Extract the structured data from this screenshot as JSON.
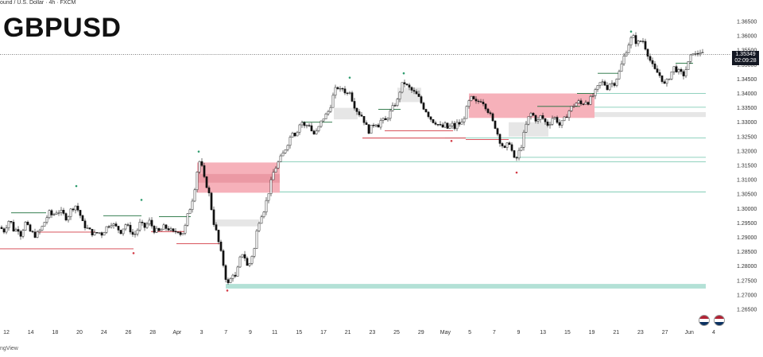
{
  "header": {
    "instrument": "ound / U.S. Dollar · 4h · FXCM"
  },
  "title": "GBPUSD",
  "watermark": "ngView",
  "current_price": {
    "price": "1.35349",
    "countdown": "02:09:28"
  },
  "colors": {
    "up": "#ffffff",
    "down": "#111111",
    "wick": "#111111",
    "supply_zone": "#f4a3ae",
    "demand_zone": "#e2e2e2",
    "liquidity_zone": "#a6dccf",
    "bullish_line": "#1b6e3a",
    "bearish_line": "#d33b46",
    "level_line": "#6cc3a9"
  },
  "chart_data": {
    "type": "candlestick",
    "title": "GBPUSD",
    "timeframe": "4h",
    "y_axis": {
      "min": 1.2625,
      "max": 1.3675,
      "ticks": [
        "1.36500",
        "1.36000",
        "1.35500",
        "1.35000",
        "1.34500",
        "1.34000",
        "1.33500",
        "1.33000",
        "1.32500",
        "1.32000",
        "1.31500",
        "1.31000",
        "1.30500",
        "1.30000",
        "1.29500",
        "1.29000",
        "1.28500",
        "1.28000",
        "1.27500",
        "1.27000",
        "1.26500"
      ]
    },
    "x_axis": {
      "ticks": [
        "12",
        "14",
        "18",
        "20",
        "24",
        "26",
        "28",
        "Apr",
        "3",
        "7",
        "9",
        "11",
        "15",
        "17",
        "21",
        "23",
        "25",
        "29",
        "May",
        "5",
        "7",
        "9",
        "13",
        "15",
        "19",
        "21",
        "23",
        "27",
        "Jun",
        "4"
      ]
    },
    "close_path": [
      [
        0,
        1.2935
      ],
      [
        6,
        1.292
      ],
      [
        10,
        1.296
      ],
      [
        14,
        1.295
      ],
      [
        18,
        1.2918
      ],
      [
        22,
        1.2935
      ],
      [
        26,
        1.291
      ],
      [
        32,
        1.295
      ],
      [
        38,
        1.292
      ],
      [
        45,
        1.2905
      ],
      [
        52,
        1.293
      ],
      [
        58,
        1.2965
      ],
      [
        62,
        1.2985
      ],
      [
        66,
        1.2975
      ],
      [
        72,
        1.2992
      ],
      [
        78,
        1.2985
      ],
      [
        84,
        1.2965
      ],
      [
        90,
        1.3
      ],
      [
        95,
        1.301
      ],
      [
        100,
        1.2985
      ],
      [
        104,
        1.295
      ],
      [
        108,
        1.2935
      ],
      [
        112,
        1.2925
      ],
      [
        118,
        1.291
      ],
      [
        124,
        1.2918
      ],
      [
        128,
        1.2912
      ],
      [
        134,
        1.2935
      ],
      [
        140,
        1.295
      ],
      [
        146,
        1.2935
      ],
      [
        152,
        1.292
      ],
      [
        158,
        1.2945
      ],
      [
        164,
        1.2925
      ],
      [
        168,
        1.2905
      ],
      [
        172,
        1.292
      ],
      [
        176,
        1.2948
      ],
      [
        182,
        1.2935
      ],
      [
        188,
        1.2955
      ],
      [
        194,
        1.2925
      ],
      [
        200,
        1.292
      ],
      [
        206,
        1.2935
      ],
      [
        212,
        1.293
      ],
      [
        218,
        1.2915
      ],
      [
        224,
        1.2925
      ],
      [
        228,
        1.291
      ],
      [
        232,
        1.2925
      ],
      [
        236,
        1.2975
      ],
      [
        240,
        1.301
      ],
      [
        244,
        1.3055
      ],
      [
        248,
        1.313
      ],
      [
        252,
        1.3175
      ],
      [
        256,
        1.311
      ],
      [
        260,
        1.308
      ],
      [
        264,
        1.304
      ],
      [
        268,
        1.296
      ],
      [
        272,
        1.292
      ],
      [
        276,
        1.287
      ],
      [
        280,
        1.282
      ],
      [
        284,
        1.276
      ],
      [
        288,
        1.273
      ],
      [
        292,
        1.278
      ],
      [
        296,
        1.276
      ],
      [
        300,
        1.28
      ],
      [
        304,
        1.285
      ],
      [
        308,
        1.283
      ],
      [
        312,
        1.279
      ],
      [
        316,
        1.283
      ],
      [
        320,
        1.286
      ],
      [
        324,
        1.294
      ],
      [
        328,
        1.2975
      ],
      [
        332,
        1.2995
      ],
      [
        336,
        1.3035
      ],
      [
        340,
        1.308
      ],
      [
        344,
        1.3125
      ],
      [
        348,
        1.315
      ],
      [
        352,
        1.317
      ],
      [
        356,
        1.319
      ],
      [
        360,
        1.3215
      ],
      [
        364,
        1.324
      ],
      [
        368,
        1.327
      ],
      [
        372,
        1.3255
      ],
      [
        376,
        1.329
      ],
      [
        380,
        1.33
      ],
      [
        384,
        1.328
      ],
      [
        388,
        1.33
      ],
      [
        392,
        1.327
      ],
      [
        396,
        1.3255
      ],
      [
        400,
        1.3275
      ],
      [
        404,
        1.33
      ],
      [
        408,
        1.332
      ],
      [
        412,
        1.333
      ],
      [
        416,
        1.336
      ],
      [
        420,
        1.34
      ],
      [
        424,
        1.3425
      ],
      [
        428,
        1.341
      ],
      [
        432,
        1.342
      ],
      [
        436,
        1.3395
      ],
      [
        440,
        1.341
      ],
      [
        444,
        1.337
      ],
      [
        448,
        1.3345
      ],
      [
        452,
        1.333
      ],
      [
        456,
        1.332
      ],
      [
        460,
        1.329
      ],
      [
        464,
        1.327
      ],
      [
        468,
        1.3285
      ],
      [
        472,
        1.33
      ],
      [
        476,
        1.329
      ],
      [
        480,
        1.331
      ],
      [
        484,
        1.33
      ],
      [
        488,
        1.332
      ],
      [
        492,
        1.334
      ],
      [
        496,
        1.336
      ],
      [
        500,
        1.3375
      ],
      [
        504,
        1.342
      ],
      [
        508,
        1.344
      ],
      [
        512,
        1.3425
      ],
      [
        516,
        1.3415
      ],
      [
        520,
        1.3405
      ],
      [
        524,
        1.3395
      ],
      [
        528,
        1.338
      ],
      [
        532,
        1.3355
      ],
      [
        536,
        1.334
      ],
      [
        540,
        1.332
      ],
      [
        544,
        1.3305
      ],
      [
        548,
        1.33
      ],
      [
        552,
        1.329
      ],
      [
        556,
        1.328
      ],
      [
        560,
        1.329
      ],
      [
        564,
        1.3275
      ],
      [
        568,
        1.3295
      ],
      [
        572,
        1.328
      ],
      [
        576,
        1.33
      ],
      [
        580,
        1.329
      ],
      [
        584,
        1.332
      ],
      [
        588,
        1.3355
      ],
      [
        592,
        1.3385
      ],
      [
        596,
        1.3375
      ],
      [
        600,
        1.3365
      ],
      [
        604,
        1.338
      ],
      [
        608,
        1.337
      ],
      [
        612,
        1.335
      ],
      [
        616,
        1.333
      ],
      [
        620,
        1.33
      ],
      [
        624,
        1.328
      ],
      [
        628,
        1.324
      ],
      [
        632,
        1.322
      ],
      [
        636,
        1.32
      ],
      [
        640,
        1.324
      ],
      [
        644,
        1.32
      ],
      [
        648,
        1.316
      ],
      [
        652,
        1.319
      ],
      [
        656,
        1.322
      ],
      [
        660,
        1.327
      ],
      [
        664,
        1.331
      ],
      [
        668,
        1.333
      ],
      [
        672,
        1.332
      ],
      [
        676,
        1.33
      ],
      [
        680,
        1.332
      ],
      [
        684,
        1.331
      ],
      [
        688,
        1.329
      ],
      [
        692,
        1.33
      ],
      [
        696,
        1.332
      ],
      [
        700,
        1.331
      ],
      [
        704,
        1.329
      ],
      [
        708,
        1.33
      ],
      [
        712,
        1.332
      ],
      [
        716,
        1.334
      ],
      [
        720,
        1.3355
      ],
      [
        724,
        1.3365
      ],
      [
        728,
        1.337
      ],
      [
        732,
        1.336
      ],
      [
        736,
        1.3375
      ],
      [
        740,
        1.337
      ],
      [
        744,
        1.3385
      ],
      [
        748,
        1.34
      ],
      [
        752,
        1.342
      ],
      [
        756,
        1.344
      ],
      [
        760,
        1.3435
      ],
      [
        764,
        1.342
      ],
      [
        768,
        1.344
      ],
      [
        772,
        1.343
      ],
      [
        776,
        1.3455
      ],
      [
        780,
        1.348
      ],
      [
        784,
        1.352
      ],
      [
        788,
        1.355
      ],
      [
        792,
        1.358
      ],
      [
        796,
        1.36
      ],
      [
        800,
        1.358
      ],
      [
        804,
        1.3575
      ],
      [
        808,
        1.359
      ],
      [
        812,
        1.356
      ],
      [
        816,
        1.353
      ],
      [
        820,
        1.35
      ],
      [
        824,
        1.348
      ],
      [
        828,
        1.347
      ],
      [
        832,
        1.3455
      ],
      [
        836,
        1.343
      ],
      [
        840,
        1.3445
      ],
      [
        844,
        1.347
      ],
      [
        848,
        1.349
      ],
      [
        852,
        1.348
      ],
      [
        856,
        1.347
      ],
      [
        860,
        1.3465
      ],
      [
        864,
        1.349
      ],
      [
        868,
        1.352
      ],
      [
        872,
        1.3545
      ],
      [
        876,
        1.353
      ],
      [
        880,
        1.355
      ],
      [
        884,
        1.3535
      ]
    ],
    "zones": [
      {
        "kind": "supply",
        "x1": 248,
        "x2": 352,
        "y_top": 1.316,
        "y_bottom": 1.3055
      },
      {
        "kind": "supply_inner",
        "x1": 248,
        "x2": 352,
        "y_top": 1.312,
        "y_bottom": 1.309
      },
      {
        "kind": "demand",
        "x1": 270,
        "x2": 326,
        "y_top": 1.2962,
        "y_bottom": 1.2938
      },
      {
        "kind": "demand",
        "x1": 420,
        "x2": 450,
        "y_top": 1.335,
        "y_bottom": 1.331
      },
      {
        "kind": "demand",
        "x1": 500,
        "x2": 530,
        "y_top": 1.342,
        "y_bottom": 1.337
      },
      {
        "kind": "supply",
        "x1": 590,
        "x2": 748,
        "y_top": 1.34,
        "y_bottom": 1.3315
      },
      {
        "kind": "demand",
        "x1": 640,
        "x2": 690,
        "y_top": 1.33,
        "y_bottom": 1.325
      },
      {
        "kind": "demand",
        "x1": 748,
        "x2": 888,
        "y_top": 1.3335,
        "y_bottom": 1.3318
      },
      {
        "kind": "liquidity",
        "x1": 284,
        "x2": 888,
        "y_top": 1.2738,
        "y_bottom": 1.2722
      }
    ],
    "levels": [
      {
        "kind": "level",
        "x1": 748,
        "x2": 888,
        "y": 1.34
      },
      {
        "kind": "level",
        "x1": 748,
        "x2": 888,
        "y": 1.3352
      },
      {
        "kind": "level",
        "x1": 352,
        "x2": 888,
        "y": 1.3058
      },
      {
        "kind": "level",
        "x1": 352,
        "x2": 888,
        "y": 1.3162
      },
      {
        "kind": "level",
        "x1": 650,
        "x2": 888,
        "y": 1.3178
      },
      {
        "kind": "level",
        "x1": 560,
        "x2": 888,
        "y": 1.3245
      },
      {
        "kind": "bull",
        "x1": 14,
        "x2": 58,
        "y": 1.2985
      },
      {
        "kind": "bull",
        "x1": 130,
        "x2": 178,
        "y": 1.2975
      },
      {
        "kind": "bull",
        "x1": 200,
        "x2": 240,
        "y": 1.2972
      },
      {
        "kind": "bull",
        "x1": 380,
        "x2": 418,
        "y": 1.33
      },
      {
        "kind": "bull",
        "x1": 476,
        "x2": 504,
        "y": 1.3345
      },
      {
        "kind": "bull",
        "x1": 676,
        "x2": 730,
        "y": 1.3355
      },
      {
        "kind": "bull",
        "x1": 726,
        "x2": 748,
        "y": 1.34
      },
      {
        "kind": "bull",
        "x1": 752,
        "x2": 778,
        "y": 1.347
      },
      {
        "kind": "bull",
        "x1": 850,
        "x2": 872,
        "y": 1.3505
      },
      {
        "kind": "bear",
        "x1": 0,
        "x2": 168,
        "y": 1.286
      },
      {
        "kind": "bear",
        "x1": 44,
        "x2": 120,
        "y": 1.2918
      },
      {
        "kind": "bear",
        "x1": 190,
        "x2": 232,
        "y": 1.292
      },
      {
        "kind": "bear",
        "x1": 222,
        "x2": 278,
        "y": 1.2878
      },
      {
        "kind": "bear",
        "x1": 484,
        "x2": 570,
        "y": 1.327
      },
      {
        "kind": "bear",
        "x1": 456,
        "x2": 586,
        "y": 1.3245
      },
      {
        "kind": "bear",
        "x1": 586,
        "x2": 640,
        "y": 1.324
      }
    ],
    "marks": [
      {
        "x": 96,
        "y": 1.3078,
        "c": "bull"
      },
      {
        "x": 178,
        "y": 1.303,
        "c": "bull"
      },
      {
        "x": 250,
        "y": 1.3198,
        "c": "bull"
      },
      {
        "x": 440,
        "y": 1.3455,
        "c": "bull"
      },
      {
        "x": 508,
        "y": 1.347,
        "c": "bull"
      },
      {
        "x": 794,
        "y": 1.3615,
        "c": "bull"
      },
      {
        "x": 168,
        "y": 1.2845,
        "c": "bear"
      },
      {
        "x": 286,
        "y": 1.2715,
        "c": "bear"
      },
      {
        "x": 568,
        "y": 1.3235,
        "c": "bear"
      },
      {
        "x": 650,
        "y": 1.3125,
        "c": "bear"
      }
    ]
  }
}
